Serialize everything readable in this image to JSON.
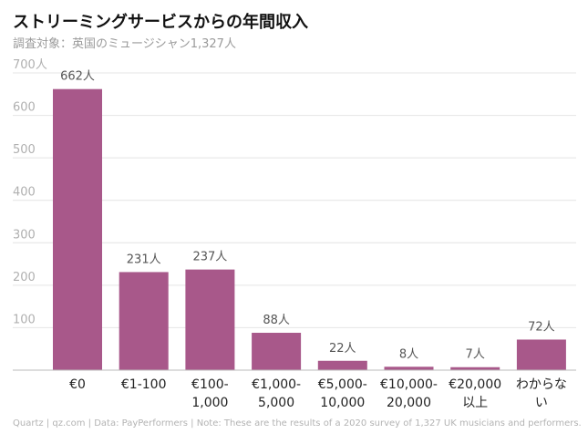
{
  "title": "ストリーミングサービスからの年間収入",
  "subtitle": "調査対象：英国のミュージシャン1,327人",
  "footer": "Quartz | qz.com | Data: PayPerformers | Note: These are the results of a 2020 survey of 1,327 UK musicians and performers.",
  "colors": {
    "bar": "#a8588a",
    "grid": "#e4e4e4",
    "axis_text": "#b0b0b0",
    "label_text": "#555555",
    "category_text": "#222222"
  },
  "chart_data": {
    "type": "bar",
    "categories": [
      [
        "€0"
      ],
      [
        "€1-100"
      ],
      [
        "€100-",
        "1,000"
      ],
      [
        "€1,000-",
        "5,000"
      ],
      [
        "€5,000-",
        "10,000"
      ],
      [
        "€10,000-",
        "20,000"
      ],
      [
        "€20,000",
        "以上"
      ],
      [
        "わからな",
        "い"
      ]
    ],
    "values": [
      662,
      231,
      237,
      88,
      22,
      8,
      7,
      72
    ],
    "data_labels": [
      "662人",
      "231人",
      "237人",
      "88人",
      "22人",
      "8人",
      "7人",
      "72人"
    ],
    "yticks": [
      100,
      200,
      300,
      400,
      500,
      600,
      700
    ],
    "ytick_labels": [
      "100",
      "200",
      "300",
      "400",
      "500",
      "600",
      "700人"
    ],
    "ylim": [
      0,
      700
    ],
    "grid": true,
    "xlabel": "",
    "ylabel": ""
  }
}
